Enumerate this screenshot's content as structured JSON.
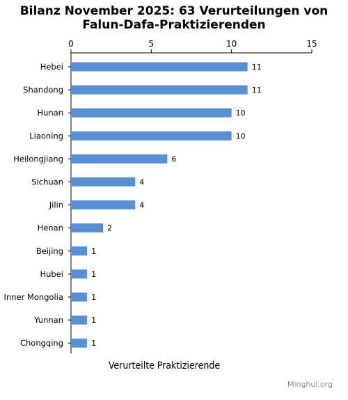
{
  "chart_data": {
    "type": "bar",
    "orientation": "horizontal",
    "title_line1": "Bilanz November 2025: 63 Verurteilungen von",
    "title_line2": "Falun-Dafa-Praktizierenden",
    "xlabel": "Verurteilte Praktizierende",
    "ylabel": "",
    "xlim": [
      0,
      15
    ],
    "xticks": [
      "0",
      "5",
      "10",
      "15"
    ],
    "tick_values": [
      0,
      5,
      10,
      15
    ],
    "categories": [
      "Hebei",
      "Shandong",
      "Hunan",
      "Liaoning",
      "Heilongjiang",
      "Sichuan",
      "Jilin",
      "Henan",
      "Beijing",
      "Hubei",
      "Inner Mongolia",
      "Yunnan",
      "Chongqing"
    ],
    "values": [
      11,
      11,
      10,
      10,
      6,
      4,
      4,
      2,
      1,
      1,
      1,
      1,
      1
    ],
    "axis_position": "top",
    "grid": false,
    "legend": "none",
    "bar_color": "#5b8fd4",
    "source": "Minghui.org"
  }
}
